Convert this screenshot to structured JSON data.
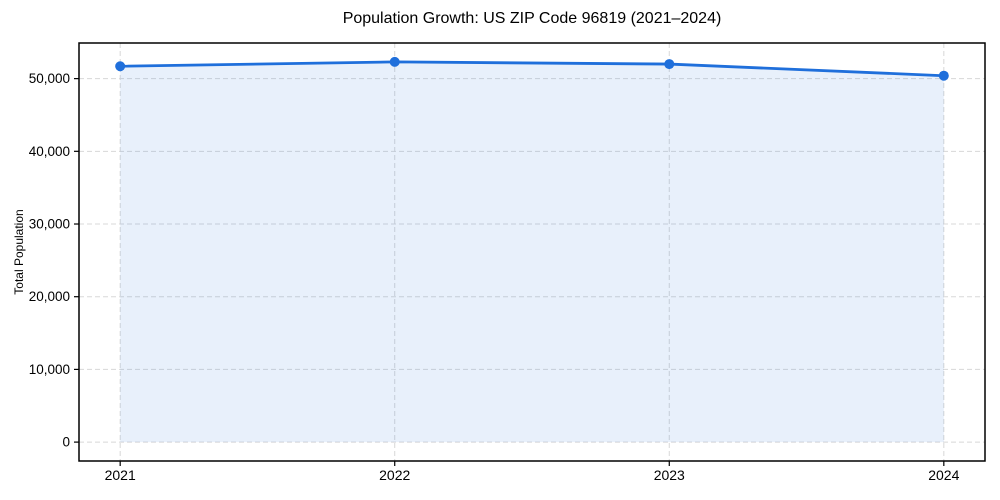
{
  "title": "Population Growth: US ZIP Code 96819 (2021–2024)",
  "chart_data": {
    "type": "area",
    "title": "Population Growth: US ZIP Code 96819 (2021–2024)",
    "xlabel": "",
    "ylabel": "Total Population",
    "x": [
      2021,
      2022,
      2023,
      2024
    ],
    "series": [
      {
        "name": "Total Population",
        "values": [
          51700,
          52300,
          52000,
          50400
        ]
      }
    ],
    "xlim": [
      2020.85,
      2024.15
    ],
    "ylim": [
      -2600,
      54900
    ],
    "xticks": [
      2021,
      2022,
      2023,
      2024
    ],
    "xtick_labels": [
      "2021",
      "2022",
      "2023",
      "2024"
    ],
    "yticks": [
      0,
      10000,
      20000,
      30000,
      40000,
      50000
    ],
    "ytick_labels": [
      "0",
      "10,000",
      "20,000",
      "30,000",
      "40,000",
      "50,000"
    ],
    "grid": true,
    "grid_style": "dashed",
    "legend": "none",
    "fill_opacity": 0.1,
    "fill_to": 0,
    "colors": {
      "line": "#1f6fdb",
      "fill": "#1f6fdb",
      "grid": "#d8d8d8",
      "axis": "#000000",
      "text": "#000000",
      "background": "#ffffff"
    }
  }
}
